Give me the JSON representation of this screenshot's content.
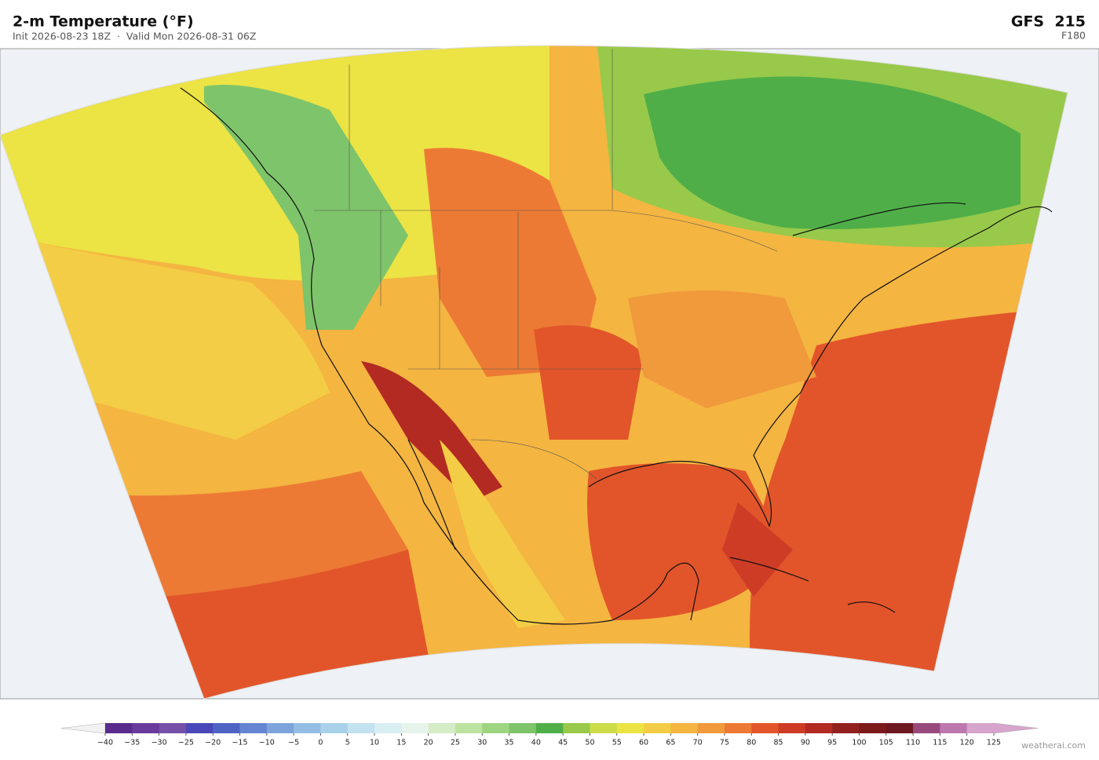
{
  "header": {
    "title": "2-m Temperature  (°F)",
    "subtitle": "Init 2026-08-23 18Z  ·  Valid Mon 2026-08-31 06Z",
    "model": "GFS  215",
    "forecast_hour": "F180"
  },
  "colorbar": {
    "ticks": [
      {
        "value": -40,
        "label": "−40"
      },
      {
        "value": -35,
        "label": "−35"
      },
      {
        "value": -30,
        "label": "−30"
      },
      {
        "value": -25,
        "label": "−25"
      },
      {
        "value": -20,
        "label": "−20"
      },
      {
        "value": -15,
        "label": "−15"
      },
      {
        "value": -10,
        "label": "−10"
      },
      {
        "value": -5,
        "label": "−5"
      },
      0,
      5,
      10,
      15,
      20,
      25,
      30,
      35,
      40,
      45,
      50,
      55,
      60,
      65,
      70,
      75,
      80,
      85,
      90,
      95,
      100,
      105,
      110,
      115,
      120,
      125
    ],
    "colors": [
      "#5a2a8c",
      "#6a3b9c",
      "#7650a8",
      "#4a47b8",
      "#4f63c6",
      "#6585d2",
      "#7fa4dc",
      "#93bde4",
      "#a9d2ea",
      "#c2e2ef",
      "#d8eef2",
      "#e6f4ec",
      "#d5ecc6",
      "#bde3a0",
      "#9ed581",
      "#7ec46a",
      "#4fae48",
      "#98c94a",
      "#cbdc48",
      "#ece344",
      "#f4cd46",
      "#f4b541",
      "#f09a3c",
      "#ec7a34",
      "#e2552a",
      "#cf3c26",
      "#b22a22",
      "#92201e",
      "#7c1a1c",
      "#6d1720",
      "#984a7c",
      "#bd78b0",
      "#d6a4cc"
    ],
    "under_color": "#f2f2f2",
    "over_color": "#d6a4cc"
  },
  "watermark": "weatherai.com"
}
